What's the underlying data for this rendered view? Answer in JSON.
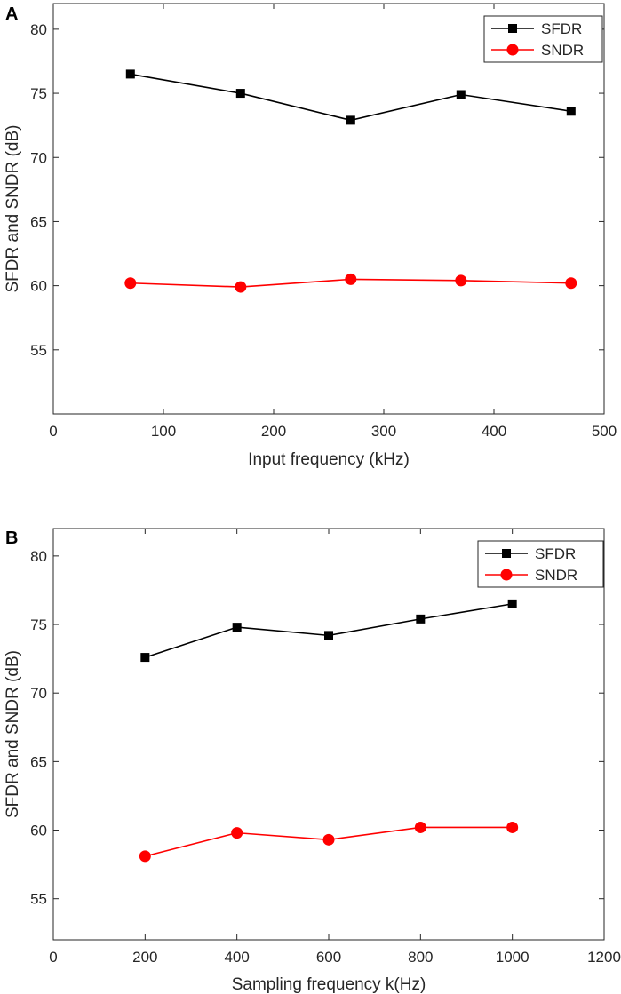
{
  "chart_data": [
    {
      "type": "line",
      "panel_label": "A",
      "xlabel": "Input frequency (kHz)",
      "ylabel": "SFDR and SNDR (dB)",
      "xlim": [
        0,
        500
      ],
      "ylim": [
        50,
        82
      ],
      "xticks": [
        0,
        100,
        200,
        300,
        400,
        500
      ],
      "yticks": [
        55,
        60,
        65,
        70,
        75,
        80
      ],
      "grid": false,
      "legend_position": "top-right",
      "series": [
        {
          "name": "SFDR",
          "color": "#000000",
          "marker": "square",
          "x": [
            70,
            170,
            270,
            370,
            470
          ],
          "y": [
            76.5,
            75.0,
            72.9,
            74.9,
            73.6
          ]
        },
        {
          "name": "SNDR",
          "color": "#ff0000",
          "marker": "circle",
          "x": [
            70,
            170,
            270,
            370,
            470
          ],
          "y": [
            60.2,
            59.9,
            60.5,
            60.4,
            60.2
          ]
        }
      ]
    },
    {
      "type": "line",
      "panel_label": "B",
      "xlabel": "Sampling frequency k(Hz)",
      "ylabel": "SFDR and SNDR (dB)",
      "xlim": [
        0,
        1200
      ],
      "ylim": [
        52,
        82
      ],
      "xticks": [
        0,
        200,
        400,
        600,
        800,
        1000,
        1200
      ],
      "yticks": [
        55,
        60,
        65,
        70,
        75,
        80
      ],
      "grid": false,
      "legend_position": "top-right",
      "series": [
        {
          "name": "SFDR",
          "color": "#000000",
          "marker": "square",
          "x": [
            200,
            400,
            600,
            800,
            1000
          ],
          "y": [
            72.6,
            74.8,
            74.2,
            75.4,
            76.5
          ]
        },
        {
          "name": "SNDR",
          "color": "#ff0000",
          "marker": "circle",
          "x": [
            200,
            400,
            600,
            800,
            1000
          ],
          "y": [
            58.1,
            59.8,
            59.3,
            60.2,
            60.2
          ]
        }
      ]
    }
  ]
}
